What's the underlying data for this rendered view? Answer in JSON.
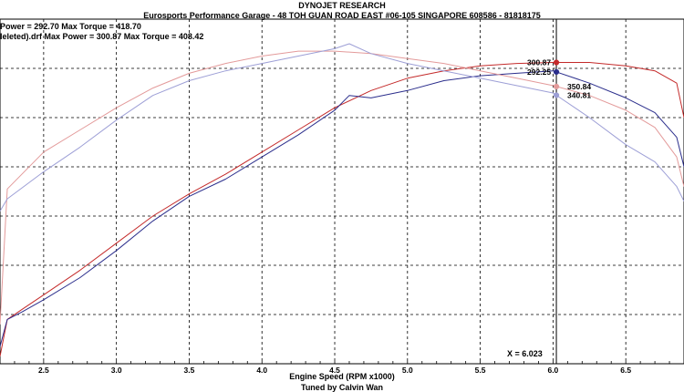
{
  "header": {
    "title": "DYNOJET RESEARCH",
    "subtitle": "Eurosports Performance Garage - 48 TOH GUAN ROAD EAST #06-105 SINGAPORE 608586 - 81818175"
  },
  "legend": {
    "line1": "Power = 292.70    Max Torque = 418.70",
    "line2": "leleted).drf Max Power = 300.87    Max Torque = 408.42"
  },
  "footer": {
    "credit": "Tuned by Calvin Wan"
  },
  "cursor_readout": "X = 6.023",
  "colors": {
    "red_power": "#c42a2a",
    "blue_power": "#2b2e8c",
    "red_torque": "#e39a9a",
    "blue_torque": "#9d9fd6"
  },
  "chart_data": {
    "type": "line",
    "xlabel": "Engine Speed (RPM x1000)",
    "xlim": [
      2.2,
      6.9
    ],
    "ylim": [
      0,
      7
    ],
    "x_ticks": [
      "2.5",
      "3.0",
      "3.5",
      "4.0",
      "4.5",
      "5.0",
      "5.5",
      "6.0",
      "6.5"
    ],
    "x_tick_values": [
      2.5,
      3.0,
      3.5,
      4.0,
      4.5,
      5.0,
      5.5,
      6.0,
      6.5
    ],
    "y_grid": [
      1,
      2,
      3,
      4,
      5,
      6
    ],
    "grid": true,
    "cursor_x": 6.023,
    "cursor_values": [
      "300.87",
      "292.25",
      "350.84",
      "340.81"
    ],
    "series": [
      {
        "key": "red_power",
        "x": [
          2.2,
          2.25,
          2.35,
          2.5,
          2.75,
          3.0,
          3.25,
          3.5,
          3.75,
          4.0,
          4.25,
          4.5,
          4.75,
          5.0,
          5.25,
          5.5,
          5.75,
          6.0,
          6.25,
          6.5,
          6.7,
          6.85,
          6.9
        ],
        "y": [
          0.15,
          0.9,
          1.1,
          1.4,
          1.9,
          2.45,
          3.0,
          3.45,
          3.85,
          4.3,
          4.75,
          5.2,
          5.55,
          5.8,
          5.95,
          6.05,
          6.1,
          6.12,
          6.12,
          6.05,
          5.95,
          5.7,
          5.0
        ]
      },
      {
        "key": "blue_power",
        "x": [
          2.2,
          2.25,
          2.35,
          2.5,
          2.75,
          3.0,
          3.25,
          3.5,
          3.75,
          4.0,
          4.25,
          4.5,
          4.6,
          4.75,
          5.0,
          5.25,
          5.5,
          5.75,
          6.0,
          6.25,
          6.5,
          6.7,
          6.85,
          6.9
        ],
        "y": [
          0.35,
          0.9,
          1.05,
          1.3,
          1.75,
          2.3,
          2.9,
          3.4,
          3.75,
          4.2,
          4.65,
          5.15,
          5.45,
          5.4,
          5.55,
          5.75,
          5.85,
          5.9,
          5.95,
          5.7,
          5.4,
          5.1,
          4.6,
          4.0
        ]
      },
      {
        "key": "red_torque",
        "x": [
          2.2,
          2.25,
          2.5,
          2.75,
          3.0,
          3.25,
          3.5,
          3.75,
          4.0,
          4.25,
          4.5,
          4.75,
          5.0,
          5.25,
          5.5,
          5.75,
          6.0,
          6.25,
          6.5,
          6.7,
          6.85,
          6.9
        ],
        "y": [
          0.8,
          3.55,
          4.3,
          4.75,
          5.2,
          5.6,
          5.9,
          6.1,
          6.25,
          6.35,
          6.35,
          6.3,
          6.2,
          6.1,
          5.95,
          5.8,
          5.65,
          5.45,
          5.15,
          4.8,
          4.2,
          3.6
        ]
      },
      {
        "key": "blue_torque",
        "x": [
          2.2,
          2.25,
          2.5,
          2.75,
          3.0,
          3.25,
          3.5,
          3.75,
          4.0,
          4.25,
          4.5,
          4.6,
          4.75,
          5.0,
          5.25,
          5.5,
          5.75,
          6.0,
          6.25,
          6.5,
          6.7,
          6.85,
          6.9
        ],
        "y": [
          3.1,
          3.35,
          3.9,
          4.4,
          4.95,
          5.45,
          5.75,
          5.95,
          6.1,
          6.25,
          6.4,
          6.5,
          6.3,
          6.1,
          5.95,
          5.8,
          5.65,
          5.5,
          5.0,
          4.45,
          4.1,
          3.6,
          3.3
        ]
      }
    ]
  }
}
